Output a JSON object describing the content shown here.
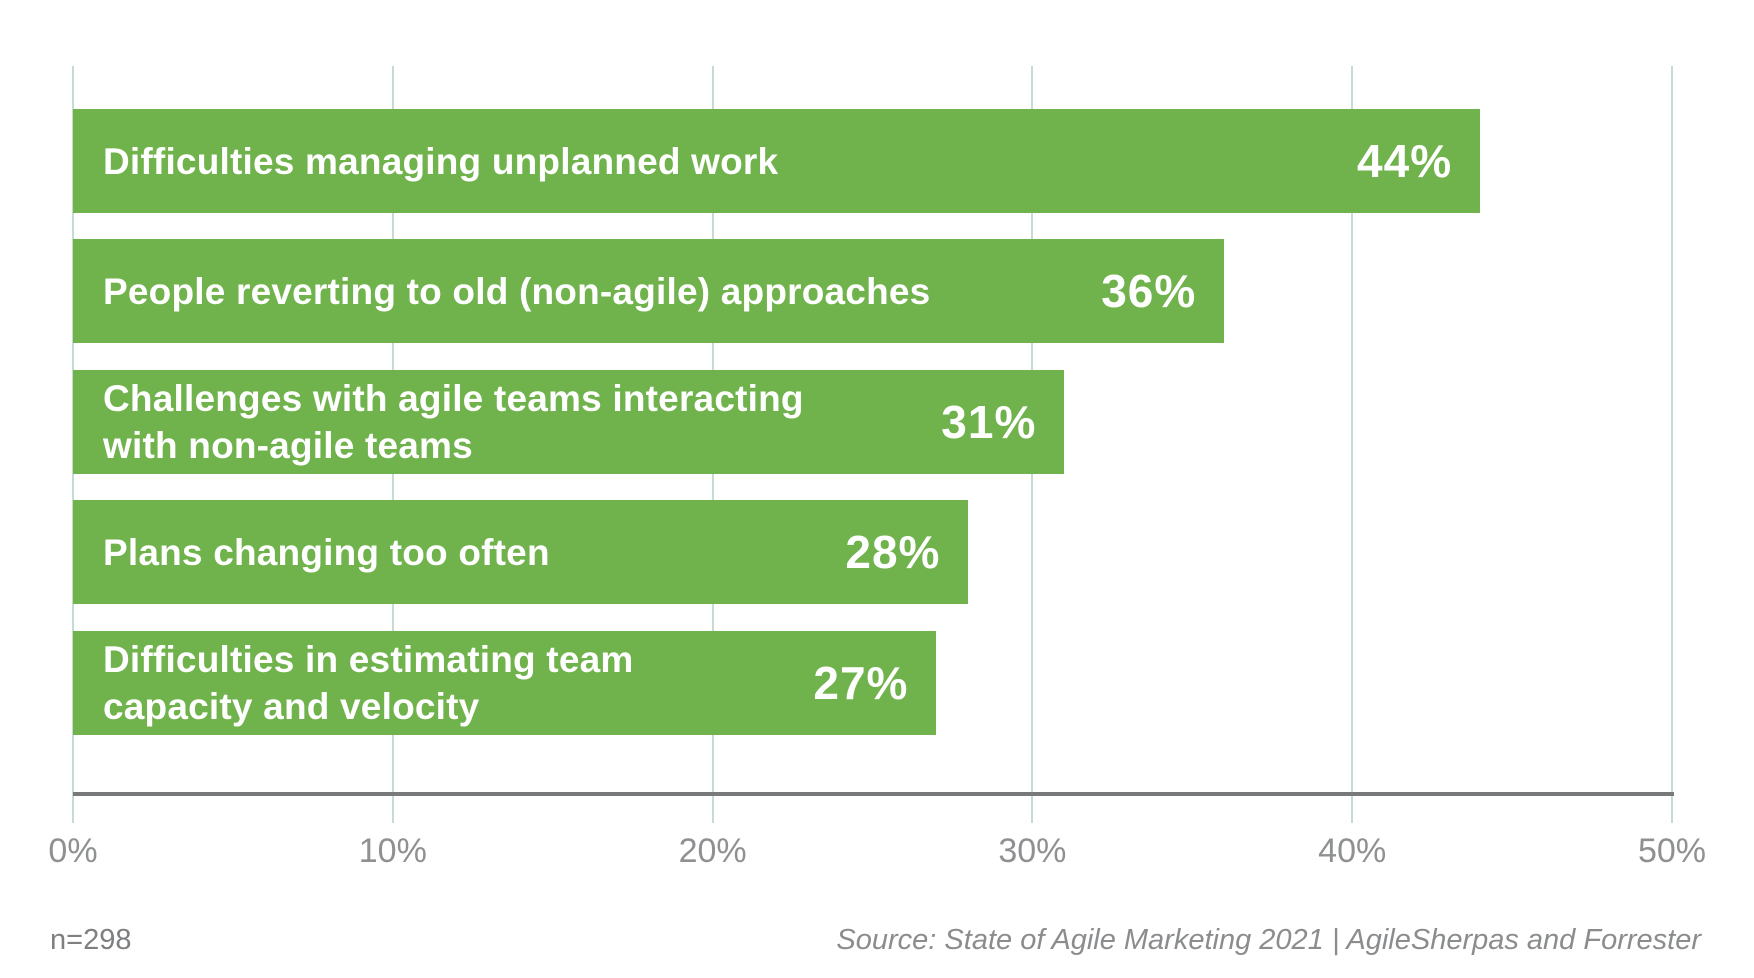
{
  "chart_data": {
    "type": "bar",
    "orientation": "horizontal",
    "title": "",
    "xlabel": "",
    "ylabel": "",
    "xlim": [
      0,
      50
    ],
    "grid": true,
    "bars": [
      {
        "label_lines": [
          "Difficulties managing unplanned work"
        ],
        "value": 44,
        "value_label": "44%"
      },
      {
        "label_lines": [
          "People reverting to old (non-agile) approaches"
        ],
        "value": 36,
        "value_label": "36%"
      },
      {
        "label_lines": [
          "Challenges with agile teams interacting",
          "with non-agile teams"
        ],
        "value": 31,
        "value_label": "31%"
      },
      {
        "label_lines": [
          "Plans changing too often"
        ],
        "value": 28,
        "value_label": "28%"
      },
      {
        "label_lines": [
          "Difficulties in estimating team",
          "capacity and velocity"
        ],
        "value": 27,
        "value_label": "27%"
      }
    ],
    "x_axis": {
      "ticks": [
        "0%",
        "10%",
        "20%",
        "30%",
        "40%",
        "50%"
      ],
      "tick_values": [
        0,
        10,
        20,
        30,
        40,
        50
      ]
    },
    "colors": {
      "bar": "#70b24b",
      "bar_text": "#ffffff",
      "grid": "#c3dcd4",
      "axis": "#78797b",
      "tick_text": "#8e9092",
      "sample_text": "#7d7f81",
      "source_text": "#8a8c8e"
    }
  },
  "footer": {
    "sample_size": "n=298",
    "source": "Source: State of Agile Marketing 2021 | AgileSherpas and Forrester"
  }
}
